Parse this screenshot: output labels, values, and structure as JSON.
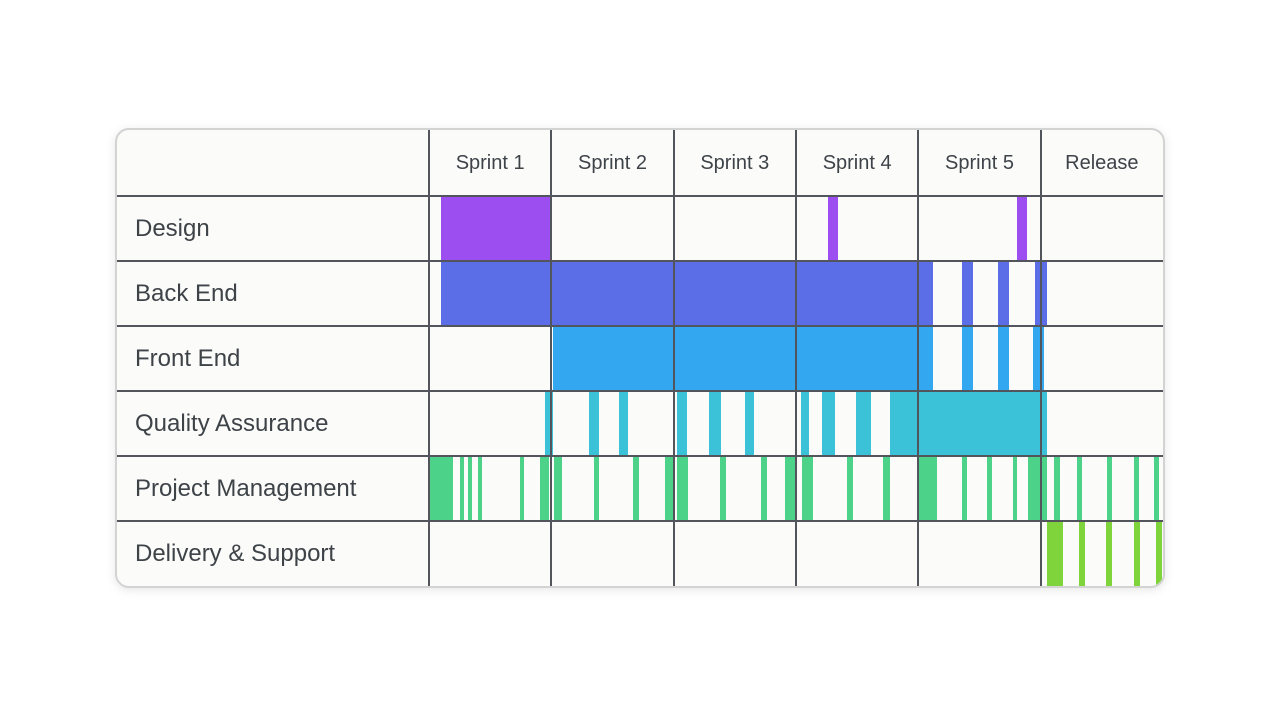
{
  "page": {
    "background": "#ffffff"
  },
  "card": {
    "background": "#fbfbfa",
    "border_color": "#d3d3d3",
    "gridline_color": "#53555c",
    "text_color": "#3e4348"
  },
  "chart_data": {
    "type": "gantt",
    "title": "",
    "legend_position": "none",
    "grid": true,
    "columns": [
      "Sprint 1",
      "Sprint 2",
      "Sprint 3",
      "Sprint 4",
      "Sprint 5",
      "Release"
    ],
    "x_unit": "sprint-columns (0 = start of Sprint 1, 6 = end of Release)",
    "x_range": [
      0,
      6
    ],
    "rows": [
      {
        "label": "Design",
        "color": "#9c4ef1",
        "bars": [
          [
            0.1,
            1.0
          ],
          [
            3.26,
            3.34
          ],
          [
            4.81,
            4.89
          ]
        ]
      },
      {
        "label": "Back End",
        "color": "#5c6ee7",
        "bars": [
          [
            0.1,
            4.12
          ],
          [
            4.36,
            4.45
          ],
          [
            4.65,
            4.74
          ],
          [
            4.95,
            5.05
          ]
        ]
      },
      {
        "label": "Front End",
        "color": "#33a7f0",
        "bars": [
          [
            1.01,
            4.12
          ],
          [
            4.36,
            4.45
          ],
          [
            4.65,
            4.74
          ],
          [
            4.94,
            5.03
          ]
        ]
      },
      {
        "label": "Quality Assurance",
        "color": "#3bc2d8",
        "bars": [
          [
            0.95,
            1.01
          ],
          [
            1.31,
            1.39
          ],
          [
            1.55,
            1.63
          ],
          [
            2.03,
            2.11
          ],
          [
            2.29,
            2.39
          ],
          [
            2.58,
            2.66
          ],
          [
            3.04,
            3.11
          ],
          [
            3.21,
            3.32
          ],
          [
            3.49,
            3.61
          ],
          [
            3.77,
            5.05
          ]
        ]
      },
      {
        "label": "Project Management",
        "color": "#4cd389",
        "bars": [
          [
            0.0,
            0.2
          ],
          [
            0.25,
            0.29
          ],
          [
            0.32,
            0.35
          ],
          [
            0.4,
            0.43
          ],
          [
            0.74,
            0.78
          ],
          [
            0.91,
            0.98
          ],
          [
            1.02,
            1.09
          ],
          [
            1.35,
            1.39
          ],
          [
            1.67,
            1.72
          ],
          [
            1.93,
            2.0
          ],
          [
            2.03,
            2.12
          ],
          [
            2.38,
            2.43
          ],
          [
            2.71,
            2.76
          ],
          [
            2.91,
            3.01
          ],
          [
            3.05,
            3.14
          ],
          [
            3.42,
            3.47
          ],
          [
            3.71,
            3.77
          ],
          [
            4.0,
            4.15
          ],
          [
            4.36,
            4.4
          ],
          [
            4.56,
            4.6
          ],
          [
            4.77,
            4.81
          ],
          [
            4.9,
            5.05
          ],
          [
            5.11,
            5.16
          ],
          [
            5.3,
            5.34
          ],
          [
            5.54,
            5.58
          ],
          [
            5.76,
            5.8
          ],
          [
            5.93,
            5.97
          ]
        ]
      },
      {
        "label": "Delivery & Support",
        "color": "#7fd43c",
        "bars": [
          [
            5.05,
            5.18
          ],
          [
            5.31,
            5.36
          ],
          [
            5.53,
            5.58
          ],
          [
            5.76,
            5.81
          ],
          [
            5.94,
            5.99
          ]
        ]
      }
    ]
  }
}
